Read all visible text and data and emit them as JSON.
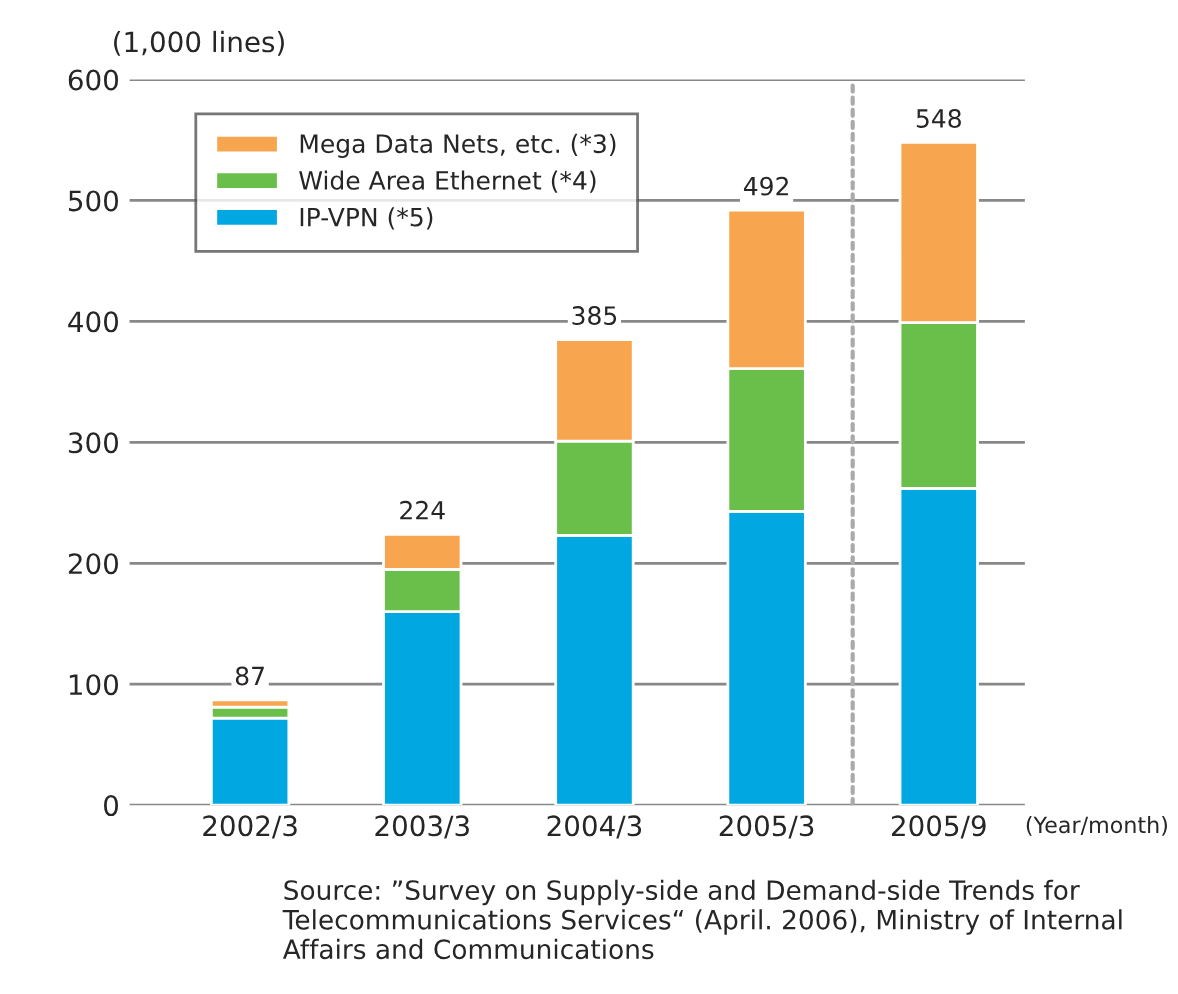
{
  "chart_data": {
    "type": "bar",
    "stacked": true,
    "categories": [
      "2002/3",
      "2003/3",
      "2004/3",
      "2005/3",
      "2005/9"
    ],
    "series": [
      {
        "name": "IP-VPN (*5)",
        "color": "#00a7e1",
        "values": [
          72,
          160,
          223,
          243,
          262
        ]
      },
      {
        "name": "Wide Area Ethernet (*4)",
        "color": "#6abf4b",
        "values": [
          9,
          35,
          78,
          118,
          137
        ]
      },
      {
        "name": "Mega Data Nets, etc. (*3)",
        "color": "#f7a64f",
        "values": [
          6,
          29,
          84,
          131,
          149
        ]
      }
    ],
    "totals": [
      "87",
      "224",
      "385",
      "492",
      "548"
    ],
    "ylim": [
      0,
      600
    ],
    "yticks": [
      0,
      100,
      200,
      300,
      400,
      500,
      600
    ],
    "ylabel": "(1,000 lines)",
    "xlabel": "(Year/month)",
    "grid": "y",
    "legend": "top left",
    "annotations": [
      "Source: ”Survey on Supply-side and Demand-side Trends for Telecommunications Services“ (April. 2006), Ministry of Internal Affairs and Communications"
    ]
  }
}
